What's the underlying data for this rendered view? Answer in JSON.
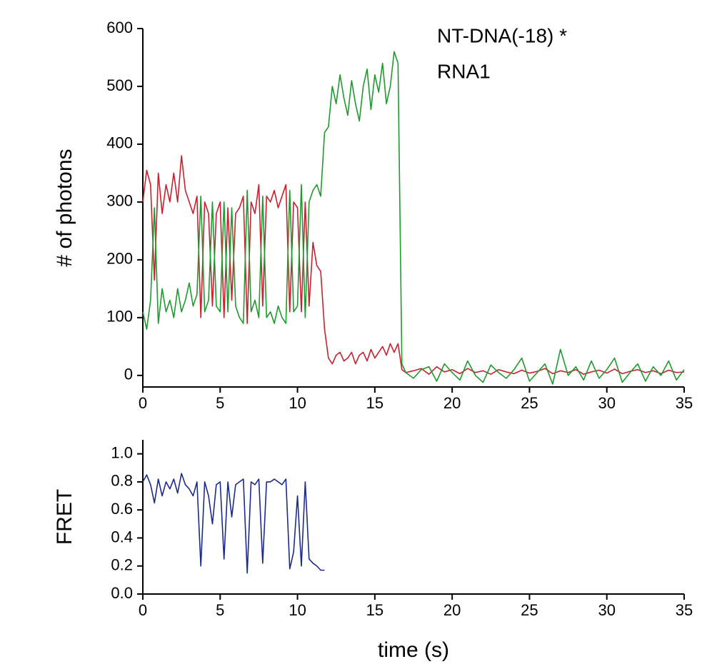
{
  "chart_data": [
    {
      "type": "line",
      "ylabel": "# of photons",
      "annotations": [
        "NT-DNA(-18) *",
        "RNA1"
      ],
      "x": [
        0,
        0.25,
        0.5,
        0.75,
        1,
        1.25,
        1.5,
        1.75,
        2,
        2.25,
        2.5,
        2.75,
        3,
        3.25,
        3.5,
        3.75,
        4,
        4.25,
        4.5,
        4.75,
        5,
        5.25,
        5.5,
        5.75,
        6,
        6.25,
        6.5,
        6.75,
        7,
        7.25,
        7.5,
        7.75,
        8,
        8.25,
        8.5,
        8.75,
        9,
        9.25,
        9.5,
        9.75,
        10,
        10.25,
        10.5,
        10.75,
        11,
        11.25,
        11.5,
        11.75,
        12,
        12.25,
        12.5,
        12.75,
        13,
        13.25,
        13.5,
        13.75,
        14,
        14.25,
        14.5,
        14.75,
        15,
        15.25,
        15.5,
        15.75,
        16,
        16.25,
        16.5,
        16.75,
        17,
        17.5,
        18,
        18.5,
        19,
        19.5,
        20,
        20.5,
        21,
        21.5,
        22,
        22.5,
        23,
        23.5,
        24,
        24.5,
        25,
        25.5,
        26,
        26.5,
        27,
        27.5,
        28,
        28.5,
        29,
        29.5,
        30,
        30.5,
        31,
        31.5,
        32,
        32.5,
        33,
        33.5,
        34,
        34.5,
        35
      ],
      "series": [
        {
          "color": "#cc1f2e",
          "values": [
            300,
            355,
            330,
            165,
            350,
            280,
            330,
            300,
            350,
            300,
            380,
            320,
            300,
            280,
            310,
            100,
            300,
            280,
            120,
            280,
            300,
            100,
            290,
            130,
            280,
            290,
            310,
            90,
            300,
            280,
            330,
            120,
            310,
            300,
            320,
            290,
            310,
            330,
            110,
            300,
            290,
            110,
            300,
            120,
            230,
            190,
            180,
            80,
            30,
            20,
            35,
            40,
            25,
            30,
            40,
            20,
            35,
            40,
            25,
            45,
            30,
            40,
            50,
            35,
            55,
            40,
            55,
            10,
            5,
            8,
            12,
            2,
            15,
            6,
            10,
            3,
            12,
            5,
            8,
            2,
            10,
            6,
            3,
            9,
            4,
            7,
            12,
            3,
            8,
            5,
            10,
            2,
            6,
            9,
            4,
            11,
            3,
            7,
            10,
            5,
            8,
            3,
            9,
            5,
            6
          ]
        },
        {
          "color": "#1f9a2e",
          "values": [
            110,
            80,
            130,
            290,
            90,
            150,
            110,
            130,
            100,
            150,
            110,
            130,
            160,
            120,
            140,
            310,
            110,
            130,
            300,
            120,
            110,
            300,
            110,
            290,
            120,
            100,
            90,
            320,
            110,
            130,
            100,
            310,
            100,
            110,
            90,
            120,
            100,
            90,
            320,
            110,
            120,
            330,
            100,
            300,
            320,
            330,
            310,
            420,
            430,
            500,
            470,
            520,
            480,
            450,
            510,
            470,
            440,
            500,
            530,
            460,
            520,
            490,
            540,
            470,
            500,
            560,
            540,
            20,
            5,
            -5,
            10,
            15,
            -10,
            20,
            5,
            -8,
            25,
            0,
            -12,
            18,
            5,
            -5,
            10,
            30,
            -10,
            5,
            20,
            -15,
            45,
            0,
            15,
            -8,
            25,
            -5,
            10,
            30,
            -12,
            5,
            20,
            -10,
            15,
            0,
            25,
            -8,
            10
          ]
        }
      ],
      "xlim": [
        0,
        35
      ],
      "xticks": [
        0,
        5,
        10,
        15,
        20,
        25,
        30,
        35
      ],
      "ylim": [
        -20,
        600
      ],
      "yticks": [
        0,
        100,
        200,
        300,
        400,
        500,
        600
      ]
    },
    {
      "type": "line",
      "xlabel": "time (s)",
      "ylabel": "FRET",
      "x": [
        0,
        0.25,
        0.5,
        0.75,
        1,
        1.25,
        1.5,
        1.75,
        2,
        2.25,
        2.5,
        2.75,
        3,
        3.25,
        3.5,
        3.75,
        4,
        4.25,
        4.5,
        4.75,
        5,
        5.25,
        5.5,
        5.75,
        6,
        6.25,
        6.5,
        6.75,
        7,
        7.25,
        7.5,
        7.75,
        8,
        8.25,
        8.5,
        8.75,
        9,
        9.25,
        9.5,
        9.75,
        10,
        10.25,
        10.5,
        10.75,
        11,
        11.25,
        11.5,
        11.75
      ],
      "series": [
        {
          "color": "#1c2a8a",
          "values": [
            0.8,
            0.85,
            0.78,
            0.65,
            0.82,
            0.7,
            0.8,
            0.75,
            0.82,
            0.72,
            0.86,
            0.78,
            0.75,
            0.7,
            0.8,
            0.2,
            0.8,
            0.7,
            0.5,
            0.78,
            0.8,
            0.25,
            0.8,
            0.55,
            0.78,
            0.8,
            0.82,
            0.15,
            0.8,
            0.78,
            0.82,
            0.22,
            0.8,
            0.8,
            0.82,
            0.8,
            0.78,
            0.82,
            0.18,
            0.3,
            0.7,
            0.2,
            0.8,
            0.25,
            0.22,
            0.2,
            0.17,
            0.17
          ]
        }
      ],
      "xlim": [
        0,
        35
      ],
      "xticks": [
        0,
        5,
        10,
        15,
        20,
        25,
        30,
        35
      ],
      "ylim": [
        0,
        1.1
      ],
      "yticks": [
        {
          "value": 0,
          "label": "0.0"
        },
        0.2,
        0.4,
        0.6,
        0.8,
        {
          "value": 1,
          "label": "1.0"
        }
      ]
    }
  ]
}
